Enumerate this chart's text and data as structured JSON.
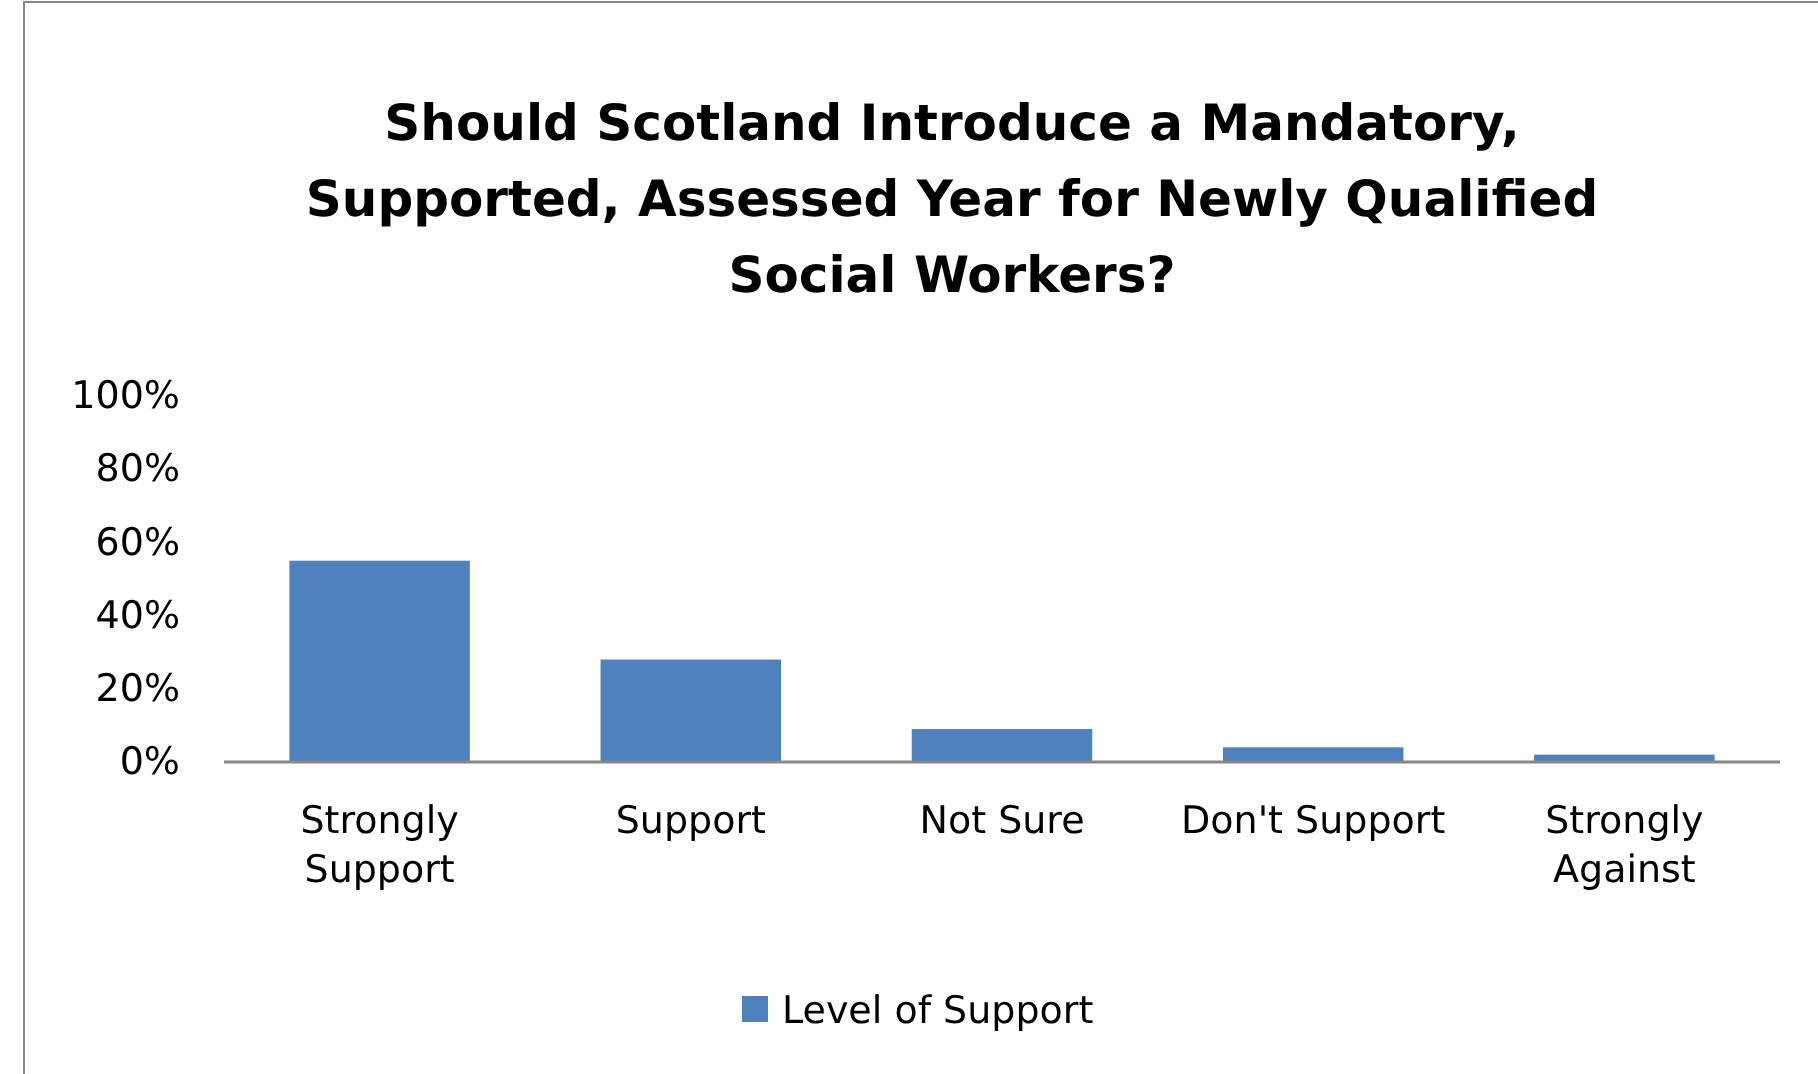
{
  "chart_data": {
    "type": "bar",
    "title": "Should Scotland Introduce a Mandatory, Supported, Assessed Year for Newly Qualified Social Workers?",
    "categories": [
      "Strongly Support",
      "Support",
      "Not Sure",
      "Don't Support",
      "Strongly Against"
    ],
    "series": [
      {
        "name": "Level of Support",
        "color": "#4f81bd",
        "values": [
          55,
          28,
          9,
          4,
          2
        ]
      }
    ],
    "ylim": [
      0,
      100
    ],
    "yticks": [
      {
        "value": 0,
        "label": "0%"
      },
      {
        "value": 20,
        "label": "20%"
      },
      {
        "value": 40,
        "label": "40%"
      },
      {
        "value": 60,
        "label": "60%"
      },
      {
        "value": 80,
        "label": "80%"
      },
      {
        "value": 100,
        "label": "100%"
      }
    ],
    "grid": false,
    "legend": "bottom"
  }
}
